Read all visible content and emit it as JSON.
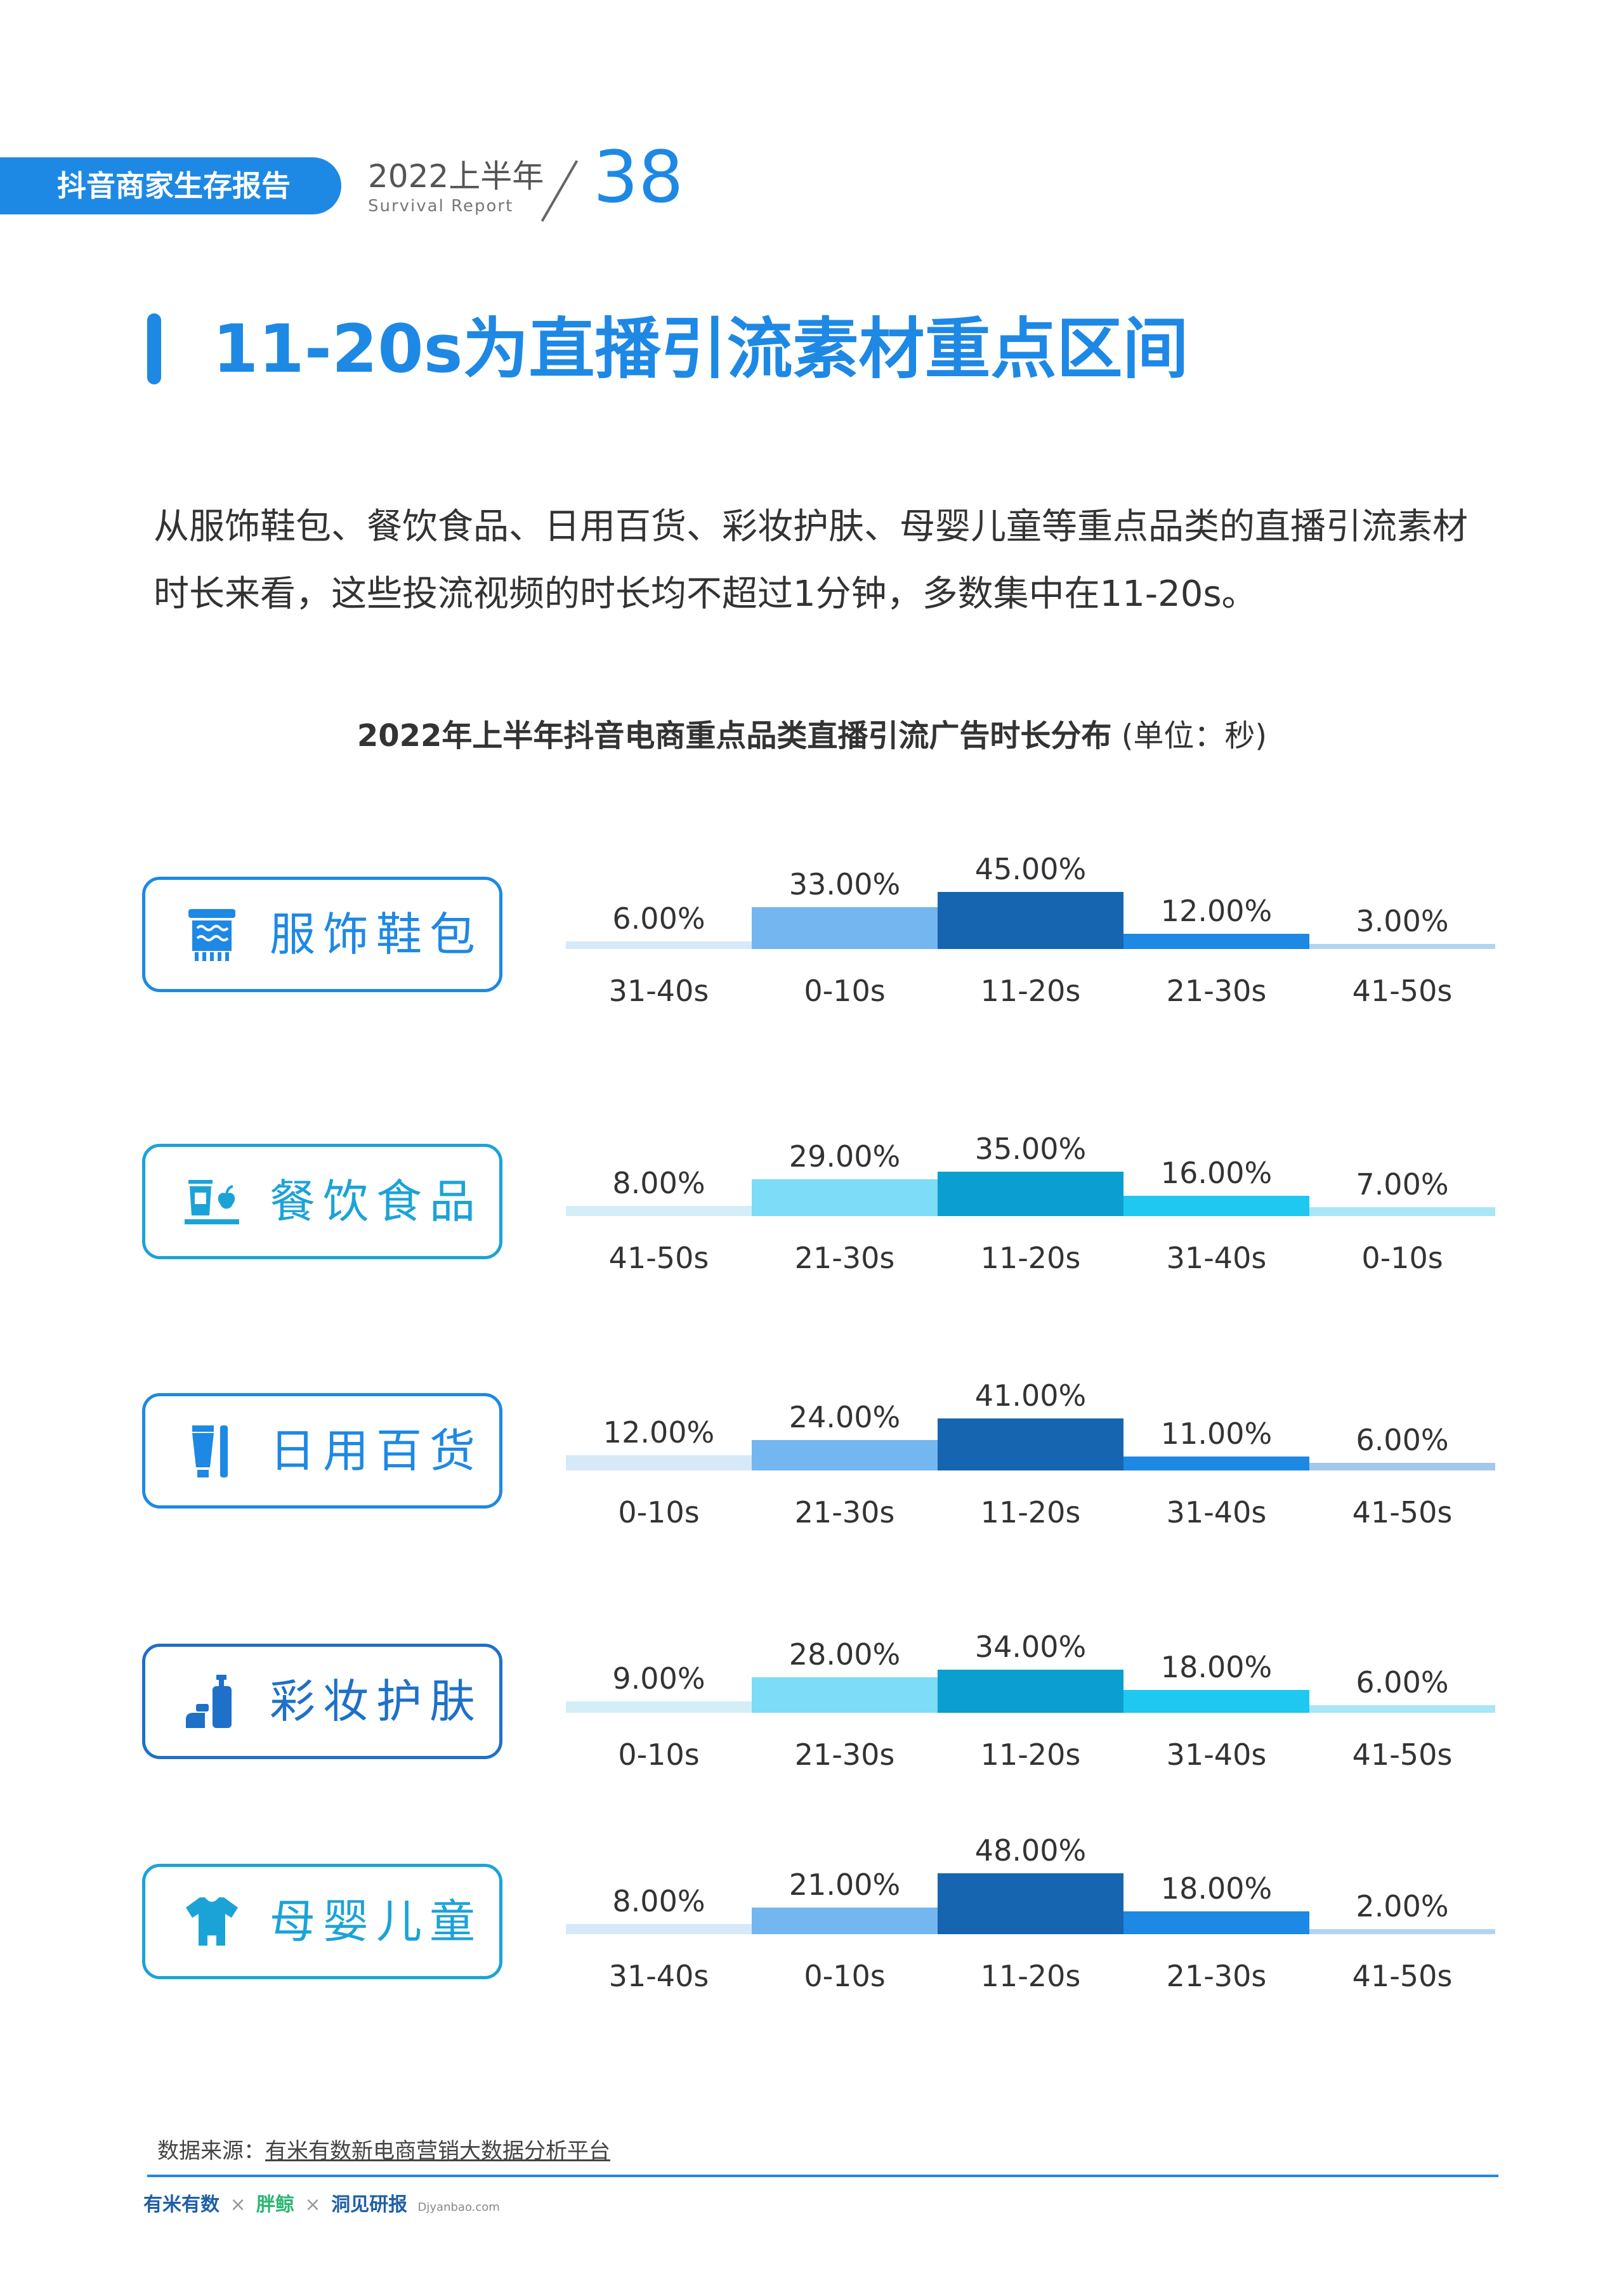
{
  "header": {
    "report_name": "抖音商家生存报告",
    "year": "2022上半年",
    "subtitle": "Survival Report",
    "page_number": "38"
  },
  "section_title": "11-20s为直播引流素材重点区间",
  "intro_text": "从服饰鞋包、餐饮食品、日用百货、彩妆护肤、母婴儿童等重点品类的直播引流素材时长来看，这些投流视频的时长均不超过1分钟，多数集中在11-20s。",
  "chart_title": "2022年上半年抖音电商重点品类直播引流广告时长分布",
  "chart_unit": "(单位：秒)",
  "chart_data": [
    {
      "type": "bar",
      "title": "服饰鞋包",
      "icon": "clothing-icon",
      "categories": [
        "31-40s",
        "0-10s",
        "11-20s",
        "21-30s",
        "41-50s"
      ],
      "values": [
        6,
        33,
        45,
        12,
        3
      ],
      "labels": [
        "6.00%",
        "33.00%",
        "45.00%",
        "12.00%",
        "3.00%"
      ],
      "colors": [
        "#d6e9f8",
        "#74b6f0",
        "#1565b0",
        "#1e88e5",
        "#b3d4f0"
      ]
    },
    {
      "type": "bar",
      "title": "餐饮食品",
      "icon": "food-icon",
      "categories": [
        "41-50s",
        "21-30s",
        "11-20s",
        "31-40s",
        "0-10s"
      ],
      "values": [
        8,
        29,
        35,
        16,
        7
      ],
      "labels": [
        "8.00%",
        "29.00%",
        "35.00%",
        "16.00%",
        "7.00%"
      ],
      "colors": [
        "#d4eef8",
        "#7ddcf7",
        "#0a9ed1",
        "#1ec8f0",
        "#a8e6f8"
      ]
    },
    {
      "type": "bar",
      "title": "日用百货",
      "icon": "toothpaste-icon",
      "categories": [
        "0-10s",
        "21-30s",
        "11-20s",
        "31-40s",
        "41-50s"
      ],
      "values": [
        12,
        24,
        41,
        11,
        6
      ],
      "labels": [
        "12.00%",
        "24.00%",
        "41.00%",
        "11.00%",
        "6.00%"
      ],
      "colors": [
        "#d6e9f8",
        "#74b6f0",
        "#1565b0",
        "#1e88e5",
        "#a3c8ec"
      ]
    },
    {
      "type": "bar",
      "title": "彩妆护肤",
      "icon": "cosmetics-icon",
      "categories": [
        "0-10s",
        "21-30s",
        "11-20s",
        "31-40s",
        "41-50s"
      ],
      "values": [
        9,
        28,
        34,
        18,
        6
      ],
      "labels": [
        "9.00%",
        "28.00%",
        "34.00%",
        "18.00%",
        "6.00%"
      ],
      "colors": [
        "#d4eef8",
        "#7ddcf7",
        "#0a9ed1",
        "#1ec8f0",
        "#a8e6f8"
      ]
    },
    {
      "type": "bar",
      "title": "母婴儿童",
      "icon": "baby-clothes-icon",
      "categories": [
        "31-40s",
        "0-10s",
        "11-20s",
        "21-30s",
        "41-50s"
      ],
      "values": [
        8,
        21,
        48,
        18,
        2
      ],
      "labels": [
        "8.00%",
        "21.00%",
        "48.00%",
        "18.00%",
        "2.00%"
      ],
      "colors": [
        "#d6e9f8",
        "#74b6f0",
        "#1565b0",
        "#1e88e5",
        "#b3d4f0"
      ]
    }
  ],
  "source": {
    "label": "数据来源：",
    "text": "有米有数新电商营销大数据分析平台"
  },
  "footer": {
    "logo1": "有米有数",
    "sep1": "×",
    "logo2": "胖鲸",
    "sep2": "×",
    "logo3": "洞见研报",
    "logo3_sub": "Djyanbao.com"
  }
}
